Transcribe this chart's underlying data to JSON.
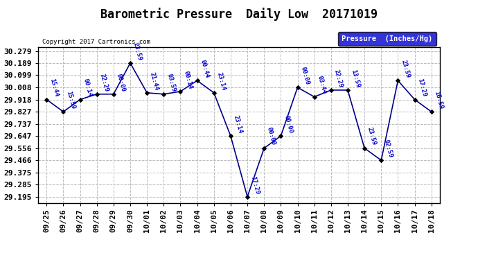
{
  "title": "Barometric Pressure  Daily Low  20171019",
  "copyright": "Copyright 2017 Cartronics.com",
  "legend_label": "Pressure  (Inches/Hg)",
  "x_labels": [
    "09/25",
    "09/26",
    "09/27",
    "09/28",
    "09/29",
    "09/30",
    "10/01",
    "10/02",
    "10/03",
    "10/04",
    "10/05",
    "10/06",
    "10/07",
    "10/08",
    "10/09",
    "10/10",
    "10/11",
    "10/12",
    "10/13",
    "10/14",
    "10/15",
    "10/16",
    "10/17",
    "10/18"
  ],
  "y_values": [
    29.918,
    29.827,
    29.918,
    29.958,
    29.958,
    30.189,
    29.968,
    29.958,
    29.978,
    30.059,
    29.968,
    29.647,
    29.195,
    29.556,
    29.647,
    30.008,
    29.938,
    29.988,
    29.988,
    29.556,
    29.466,
    30.059,
    29.918,
    29.827
  ],
  "annotations": [
    "15:44",
    "15:59",
    "00:14",
    "22:29",
    "00:00",
    "23:59",
    "21:44",
    "03:59",
    "00:14",
    "00:44",
    "23:14",
    "23:14",
    "17:29",
    "00:00",
    "00:00",
    "00:00",
    "03:44",
    "22:29",
    "13:59",
    "23:59",
    "02:59",
    "23:59",
    "17:29",
    "16:59"
  ],
  "ylim_min": 29.15,
  "ylim_max": 30.31,
  "yticks": [
    29.195,
    29.285,
    29.375,
    29.466,
    29.556,
    29.647,
    29.737,
    29.827,
    29.918,
    30.008,
    30.099,
    30.189,
    30.279
  ],
  "line_color": "#00008B",
  "marker_color": "#000000",
  "bg_color": "#ffffff",
  "plot_bg_color": "#ffffff",
  "grid_color": "#bbbbbb",
  "annotation_color": "#0000CC",
  "title_fontsize": 12,
  "annotation_fontsize": 6.5,
  "tick_fontsize": 8,
  "legend_bg": "#0000CD",
  "legend_text_color": "#ffffff"
}
